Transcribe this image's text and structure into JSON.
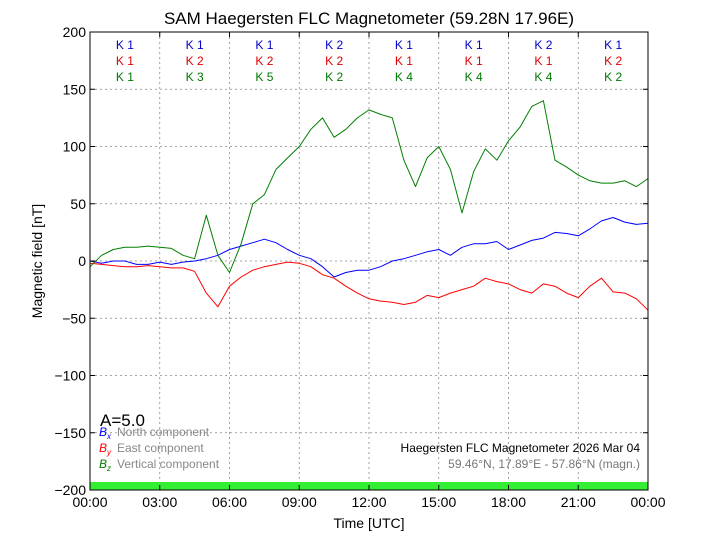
{
  "chart_data": {
    "type": "line",
    "title": "SAM Haegersten FLC Magnetometer (59.28N 17.96E)",
    "xlabel": "Time [UTC]",
    "ylabel": "Magnetic field [nT]",
    "xlim": [
      0,
      24
    ],
    "ylim": [
      -200,
      200
    ],
    "x_ticks": [
      0,
      3,
      6,
      9,
      12,
      15,
      18,
      21,
      24
    ],
    "x_tick_labels": [
      "00:00",
      "03:00",
      "06:00",
      "09:00",
      "12:00",
      "15:00",
      "18:00",
      "21:00",
      "00:00"
    ],
    "y_ticks": [
      -200,
      -150,
      -100,
      -50,
      0,
      50,
      100,
      150,
      200
    ],
    "y_tick_labels": [
      "−200",
      "−150",
      "−100",
      "−50",
      "0",
      "50",
      "100",
      "150",
      "200"
    ],
    "grid": true,
    "k_index": {
      "colors": [
        "#0000cc",
        "#dd0000",
        "#007700"
      ],
      "rows": [
        [
          "K 1",
          "K 1",
          "K 1",
          "K 2",
          "K 1",
          "K 1",
          "K 2",
          "K 1"
        ],
        [
          "K 1",
          "K 2",
          "K 2",
          "K 2",
          "K 1",
          "K 1",
          "K 1",
          "K 2"
        ],
        [
          "K 1",
          "K 3",
          "K 5",
          "K 2",
          "K 4",
          "K 4",
          "K 4",
          "K 2"
        ]
      ]
    },
    "a_index": "A=5.0",
    "legend": [
      {
        "symbol": "B",
        "sub": "x",
        "label": "North component",
        "color": "#0000ff"
      },
      {
        "symbol": "B",
        "sub": "y",
        "label": "East component",
        "color": "#ff0000"
      },
      {
        "symbol": "B",
        "sub": "z",
        "label": "Vertical component",
        "color": "#008000"
      }
    ],
    "info_line1": "Haegersten FLC Magnetometer 2026 Mar 04",
    "info_line2": "59.46°N, 17.89°E - 57.86°N (magn.)",
    "band_color": "#33ee33",
    "series": [
      {
        "name": "North component",
        "color": "#0000ff",
        "x": [
          0,
          0.5,
          1,
          1.5,
          2,
          2.5,
          3,
          3.5,
          4,
          4.5,
          5,
          5.5,
          6,
          6.5,
          7,
          7.5,
          8,
          8.5,
          9,
          9.5,
          10,
          10.5,
          11,
          11.5,
          12,
          12.5,
          13,
          13.5,
          14,
          14.5,
          15,
          15.5,
          16,
          16.5,
          17,
          17.5,
          18,
          18.5,
          19,
          19.5,
          20,
          20.5,
          21,
          21.5,
          22,
          22.5,
          23,
          23.5,
          24
        ],
        "values": [
          0,
          -2,
          0,
          0,
          -3,
          -3,
          -1,
          -3,
          -1,
          0,
          2,
          5,
          10,
          13,
          16,
          19,
          16,
          10,
          5,
          2,
          -5,
          -14,
          -10,
          -8,
          -8,
          -5,
          0,
          2,
          5,
          8,
          10,
          5,
          12,
          15,
          15,
          17,
          10,
          14,
          18,
          20,
          25,
          24,
          22,
          28,
          35,
          38,
          34,
          32,
          33
        ]
      },
      {
        "name": "East component",
        "color": "#ff0000",
        "x": [
          0,
          0.5,
          1,
          1.5,
          2,
          2.5,
          3,
          3.5,
          4,
          4.5,
          5,
          5.5,
          6,
          6.5,
          7,
          7.5,
          8,
          8.5,
          9,
          9.5,
          10,
          10.5,
          11,
          11.5,
          12,
          12.5,
          13,
          13.5,
          14,
          14.5,
          15,
          15.5,
          16,
          16.5,
          17,
          17.5,
          18,
          18.5,
          19,
          19.5,
          20,
          20.5,
          21,
          21.5,
          22,
          22.5,
          23,
          23.5,
          24
        ],
        "values": [
          -2,
          -3,
          -4,
          -5,
          -5,
          -4,
          -5,
          -6,
          -6,
          -9,
          -28,
          -40,
          -22,
          -14,
          -8,
          -5,
          -3,
          -1,
          -2,
          -5,
          -12,
          -15,
          -22,
          -28,
          -33,
          -35,
          -36,
          -38,
          -36,
          -30,
          -32,
          -28,
          -25,
          -22,
          -15,
          -18,
          -20,
          -25,
          -28,
          -20,
          -22,
          -28,
          -32,
          -22,
          -15,
          -27,
          -28,
          -33,
          -43
        ]
      },
      {
        "name": "Vertical component",
        "color": "#008000",
        "x": [
          0,
          0.5,
          1,
          1.5,
          2,
          2.5,
          3,
          3.5,
          4,
          4.5,
          5,
          5.5,
          6,
          6.5,
          7,
          7.5,
          8,
          8.5,
          9,
          9.5,
          10,
          10.5,
          11,
          11.5,
          12,
          12.5,
          13,
          13.5,
          14,
          14.5,
          15,
          15.5,
          16,
          16.5,
          17,
          17.5,
          18,
          18.5,
          19,
          19.5,
          20,
          20.5,
          21,
          21.5,
          22,
          22.5,
          23,
          23.5,
          24
        ],
        "values": [
          -5,
          5,
          10,
          12,
          12,
          13,
          12,
          11,
          5,
          2,
          40,
          5,
          -10,
          15,
          50,
          58,
          80,
          90,
          100,
          115,
          125,
          108,
          115,
          125,
          132,
          128,
          125,
          88,
          65,
          90,
          100,
          80,
          42,
          78,
          98,
          88,
          105,
          117,
          135,
          140,
          88,
          82,
          75,
          70,
          68,
          68,
          70,
          65,
          72
        ]
      }
    ]
  }
}
